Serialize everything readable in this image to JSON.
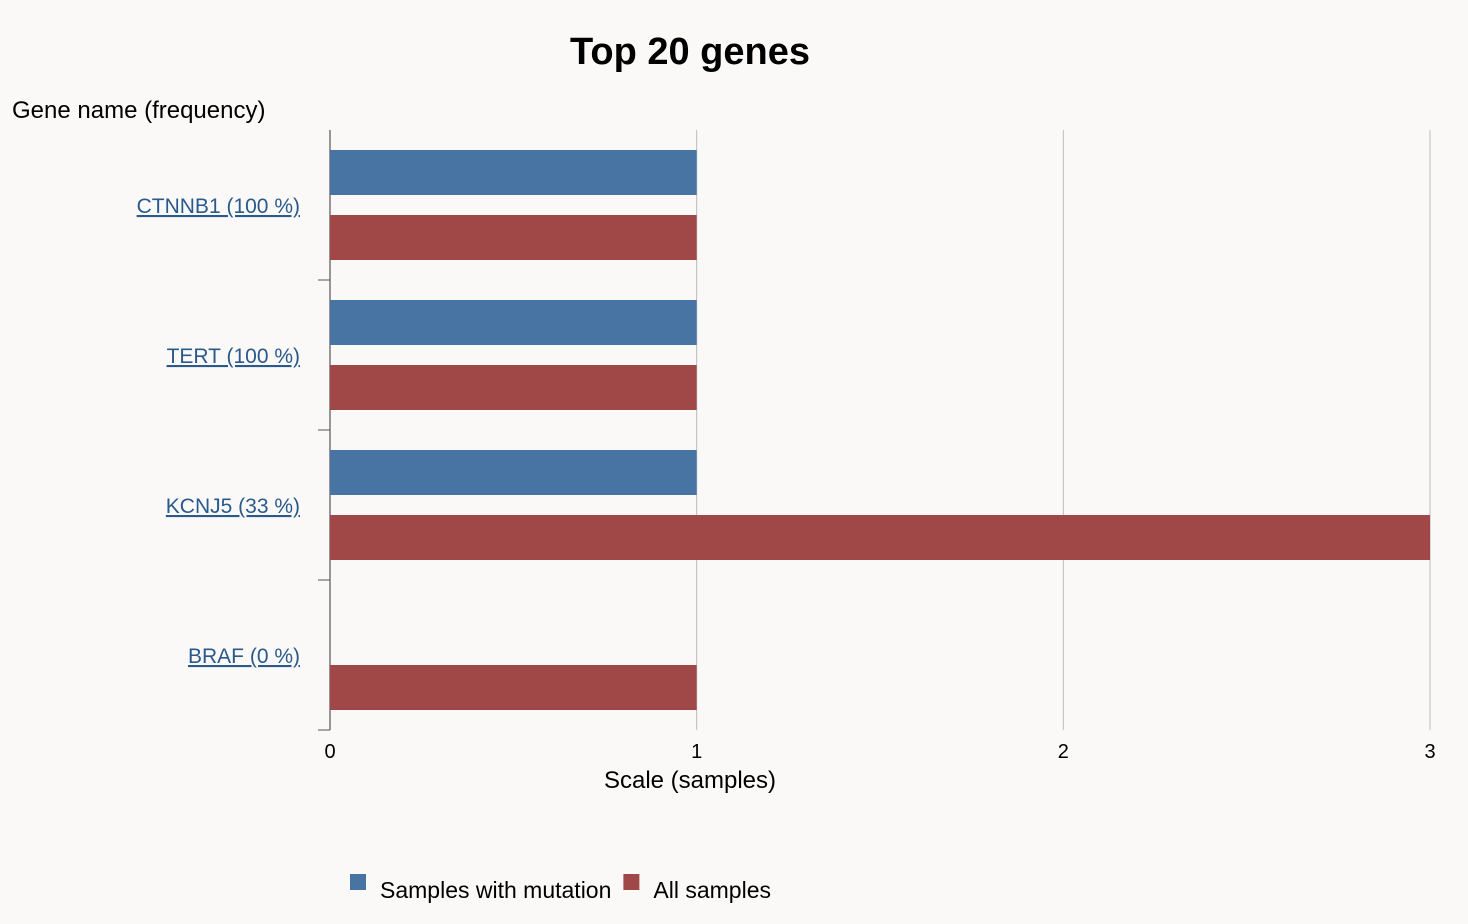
{
  "chart_data": {
    "type": "bar",
    "orientation": "horizontal",
    "title": "Top 20 genes",
    "ylabel": "Gene name (frequency)",
    "xlabel": "Scale (samples)",
    "categories": [
      "CTNNB1 (100 %)",
      "TERT (100 %)",
      "KCNJ5 (33 %)",
      "BRAF (0 %)"
    ],
    "series": [
      {
        "name": "Samples with mutation",
        "color": "#4774a3",
        "values": [
          1,
          1,
          1,
          0
        ]
      },
      {
        "name": "All samples",
        "color": "#a04848",
        "values": [
          1,
          1,
          3,
          1
        ]
      }
    ],
    "xlim": [
      0,
      3
    ],
    "xticks": [
      0,
      1,
      2,
      3
    ],
    "grid": true,
    "legend_position": "bottom"
  }
}
